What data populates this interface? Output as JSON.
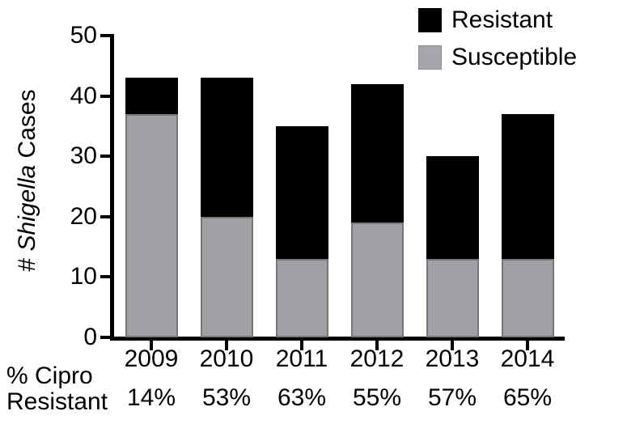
{
  "figure": {
    "y_axis_title": {
      "prefix": "# ",
      "italic": "Shigella",
      "suffix": " Cases"
    },
    "x_axis_note": {
      "line1": "% Cipro",
      "line2": "Resistant"
    }
  },
  "legend": {
    "position": "top-right",
    "items": [
      {
        "name": "Resistant",
        "label": "Resistant",
        "color": "#000000"
      },
      {
        "name": "Susceptible",
        "label": "Susceptible",
        "color": "#a7a7ab"
      }
    ]
  },
  "chart_data": {
    "type": "bar",
    "stacked": true,
    "title": "",
    "categories": [
      "2009",
      "2010",
      "2011",
      "2012",
      "2013",
      "2014"
    ],
    "series": [
      {
        "name": "Susceptible",
        "color": "#a1a1a5",
        "values": [
          37,
          20,
          13,
          19,
          13,
          13
        ]
      },
      {
        "name": "Resistant",
        "color": "#000000",
        "values": [
          6,
          23,
          22,
          23,
          17,
          24
        ]
      }
    ],
    "totals": [
      43,
      43,
      35,
      42,
      30,
      37
    ],
    "secondary_row_label": "% Cipro Resistant",
    "secondary_row_values": [
      "14%",
      "53%",
      "63%",
      "55%",
      "57%",
      "65%"
    ],
    "xlabel": "",
    "ylabel": "# Shigella Cases",
    "ylim": [
      0,
      50
    ],
    "yticks": [
      0,
      10,
      20,
      30,
      40,
      50
    ],
    "grid": false,
    "legend_position": "top-right"
  }
}
